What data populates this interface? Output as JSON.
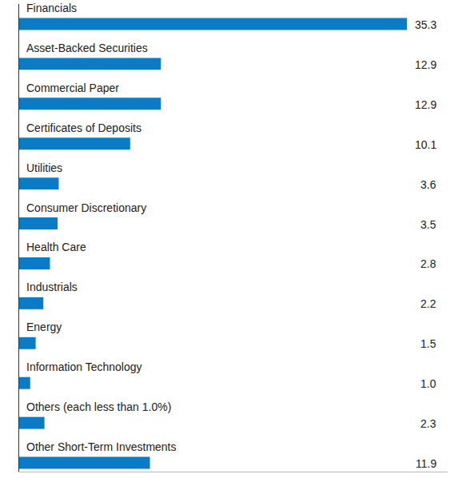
{
  "chart_data": {
    "type": "bar",
    "orientation": "horizontal",
    "categories": [
      "Financials",
      "Asset-Backed Securities",
      "Commercial Paper",
      "Certificates of Deposits",
      "Utilities",
      "Consumer Discretionary",
      "Health Care",
      "Industrials",
      "Energy",
      "Information Technology",
      "Others (each less than 1.0%)",
      "Other Short-Term Investments"
    ],
    "values": [
      35.3,
      12.9,
      12.9,
      10.1,
      3.6,
      3.5,
      2.8,
      2.2,
      1.5,
      1.0,
      2.3,
      11.9
    ],
    "value_labels": [
      "35.3",
      "12.9",
      "12.9",
      "10.1",
      "3.6",
      "3.5",
      "2.8",
      "2.2",
      "1.5",
      "1.0",
      "2.3",
      "11.9"
    ],
    "color": "#0a7bc4",
    "xlim": [
      0,
      39
    ],
    "data_labels": true,
    "grid": false
  }
}
